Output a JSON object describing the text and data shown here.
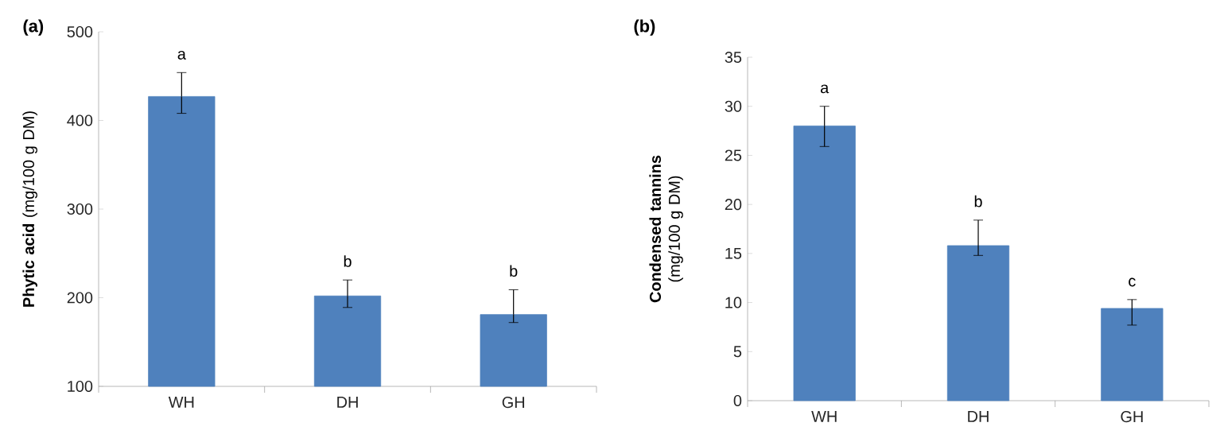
{
  "chart_data": [
    {
      "type": "bar",
      "title": "(a)",
      "ylabel": "**Phytic acid** (mg/100 g DM)",
      "categories": [
        "WH",
        "DH",
        "GH"
      ],
      "values": [
        427,
        202,
        181
      ],
      "errors": [
        [
          408,
          454
        ],
        [
          189,
          220
        ],
        [
          172,
          209
        ]
      ],
      "color": "#4f81bd",
      "ylim": [
        100,
        500
      ],
      "yticks": [
        100,
        200,
        300,
        400,
        500
      ],
      "annotations": [
        "a",
        "b",
        "b"
      ]
    },
    {
      "type": "bar",
      "title": "(b)",
      "ylabel": "**Condensed tannins** (mg/100 g DM)",
      "categories": [
        "WH",
        "DH",
        "GH"
      ],
      "values": [
        28,
        15.8,
        9.4
      ],
      "errors": [
        [
          25.9,
          30
        ],
        [
          14.8,
          18.4
        ],
        [
          7.7,
          10.3
        ]
      ],
      "color": "#4f81bd",
      "ylim": [
        0,
        35
      ],
      "yticks": [
        0,
        5,
        10,
        15,
        20,
        25,
        30,
        35
      ],
      "annotations": [
        "a",
        "b",
        "c"
      ]
    }
  ]
}
